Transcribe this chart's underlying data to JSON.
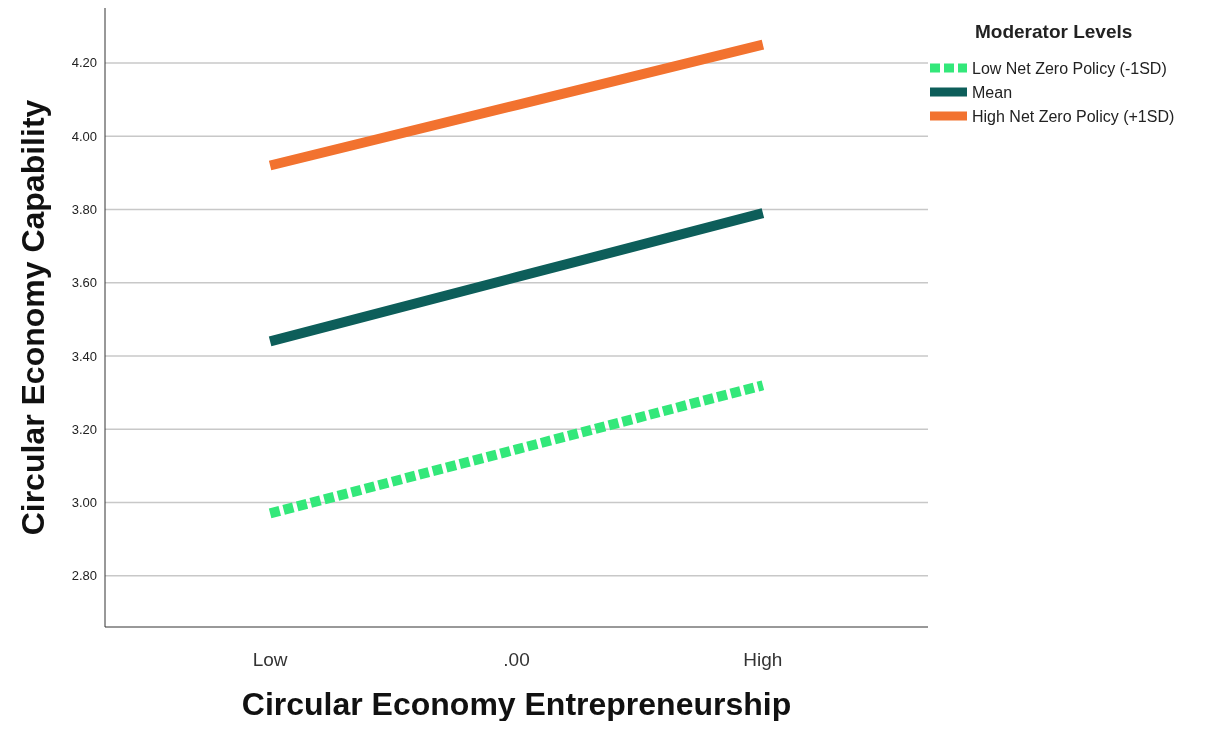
{
  "chart_data": {
    "type": "line",
    "xlabel": "Circular Economy Entrepreneurship",
    "ylabel": "Circular Economy Capability",
    "legend_title": "Moderator Levels",
    "categories": [
      "Low",
      ".00",
      "High"
    ],
    "series": [
      {
        "name": "Low Net Zero Policy (-1SD)",
        "color": "#33e87a",
        "values": [
          2.97,
          3.145,
          3.32
        ],
        "line_style": "dashed"
      },
      {
        "name": "Mean",
        "color": "#0d5e5a",
        "values": [
          3.44,
          3.615,
          3.79
        ],
        "line_style": "solid"
      },
      {
        "name": "High Net Zero Policy (+1SD)",
        "color": "#f2722f",
        "values": [
          3.92,
          4.085,
          4.25
        ],
        "line_style": "solid"
      }
    ],
    "ylim": [
      2.66,
      4.35
    ],
    "yticks": [
      {
        "value": 2.8,
        "label": "2.80"
      },
      {
        "value": 3.0,
        "label": "3.00"
      },
      {
        "value": 3.2,
        "label": "3.20"
      },
      {
        "value": 3.4,
        "label": "3.40"
      },
      {
        "value": 3.6,
        "label": "3.60"
      },
      {
        "value": 3.8,
        "label": "3.80"
      },
      {
        "value": 4.0,
        "label": "4.00"
      },
      {
        "value": 4.2,
        "label": "4.20"
      }
    ],
    "grid": "y",
    "legend": "top right",
    "marker": "none"
  }
}
